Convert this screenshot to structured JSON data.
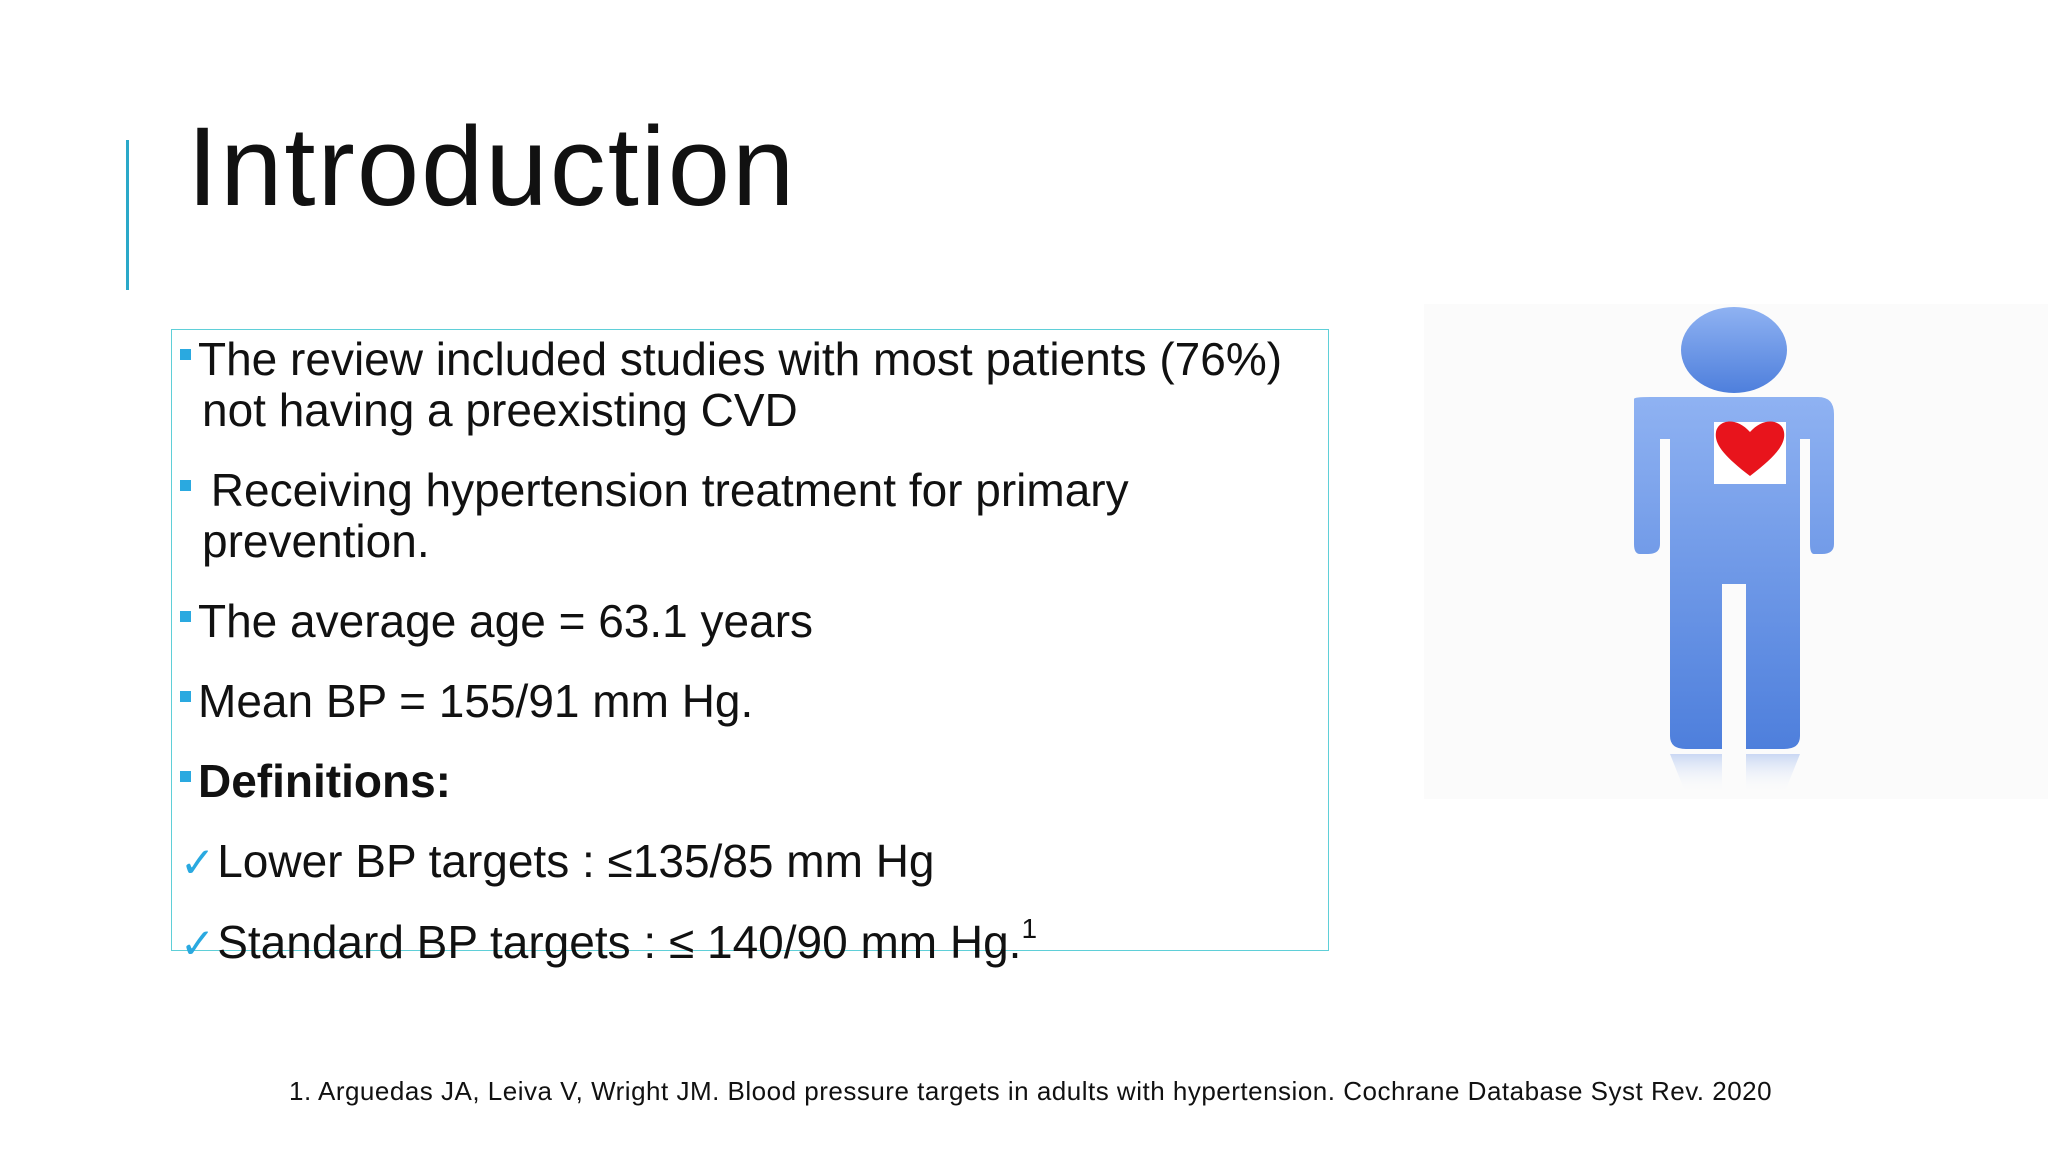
{
  "slide": {
    "title": "Introduction",
    "bullets": [
      "The review included studies with most patients (76%) not having a preexisting CVD",
      " Receiving hypertension treatment for primary prevention.",
      "The average age = 63.1 years",
      "Mean BP =  155/91 mm Hg.",
      "Definitions:"
    ],
    "checks": [
      {
        "text": "Lower BP targets :  ≤135/85 mm Hg"
      },
      {
        "text": "Standard BP  targets :  ≤ 140/90 mm Hg.",
        "superscript": "1"
      }
    ],
    "footnote": "1. Arguedas JA, Leiva V, Wright JM. Blood pressure targets in adults with hypertension. Cochrane Database Syst Rev. 2020"
  }
}
